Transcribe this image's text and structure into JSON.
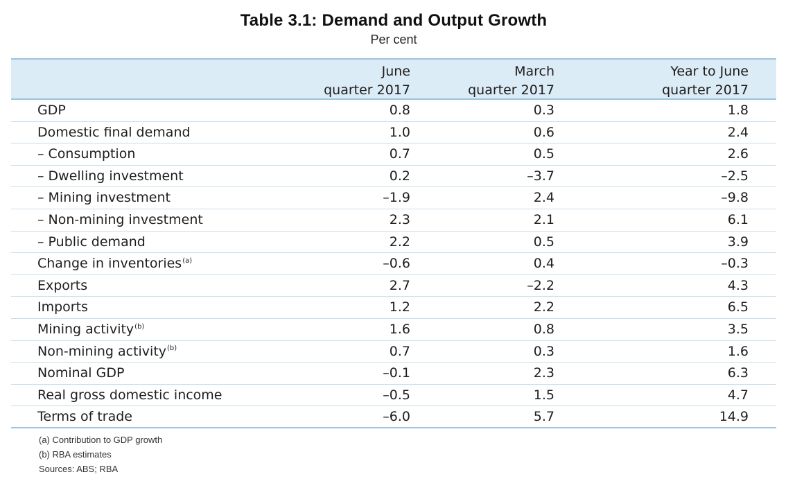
{
  "title": "Table 3.1: Demand and Output Growth",
  "subtitle": "Per cent",
  "columns": [
    {
      "line1": "June",
      "line2": "quarter 2017"
    },
    {
      "line1": "March",
      "line2": "quarter 2017"
    },
    {
      "line1": "Year to June",
      "line2": "quarter 2017"
    }
  ],
  "rows": [
    {
      "label": "GDP",
      "note": "",
      "values": [
        "0.8",
        "0.3",
        "1.8"
      ]
    },
    {
      "label": "Domestic final demand",
      "note": "",
      "values": [
        "1.0",
        "0.6",
        "2.4"
      ]
    },
    {
      "label": "– Consumption",
      "note": "",
      "values": [
        "0.7",
        "0.5",
        "2.6"
      ]
    },
    {
      "label": "– Dwelling investment",
      "note": "",
      "values": [
        "0.2",
        "–3.7",
        "–2.5"
      ]
    },
    {
      "label": "– Mining investment",
      "note": "",
      "values": [
        "–1.9",
        "2.4",
        "–9.8"
      ]
    },
    {
      "label": "– Non-mining investment",
      "note": "",
      "values": [
        "2.3",
        "2.1",
        "6.1"
      ]
    },
    {
      "label": "– Public demand",
      "note": "",
      "values": [
        "2.2",
        "0.5",
        "3.9"
      ]
    },
    {
      "label": "Change in inventories",
      "note": "(a)",
      "values": [
        "–0.6",
        "0.4",
        "–0.3"
      ]
    },
    {
      "label": "Exports",
      "note": "",
      "values": [
        "2.7",
        "–2.2",
        "4.3"
      ]
    },
    {
      "label": "Imports",
      "note": "",
      "values": [
        "1.2",
        "2.2",
        "6.5"
      ]
    },
    {
      "label": "Mining activity",
      "note": "(b)",
      "values": [
        "1.6",
        "0.8",
        "3.5"
      ]
    },
    {
      "label": "Non-mining activity",
      "note": "(b)",
      "values": [
        "0.7",
        "0.3",
        "1.6"
      ]
    },
    {
      "label": "Nominal GDP",
      "note": "",
      "values": [
        "–0.1",
        "2.3",
        "6.3"
      ]
    },
    {
      "label": "Real gross domestic income",
      "note": "",
      "values": [
        "–0.5",
        "1.5",
        "4.7"
      ]
    },
    {
      "label": "Terms of trade",
      "note": "",
      "values": [
        "–6.0",
        "5.7",
        "14.9"
      ]
    }
  ],
  "footnotes": [
    "(a) Contribution to GDP growth",
    "(b) RBA estimates",
    "Sources: ABS; RBA"
  ],
  "colors": {
    "header_background": "#dcecf6",
    "rule": "#9cc4de",
    "row_rule": "#c7dde9"
  }
}
